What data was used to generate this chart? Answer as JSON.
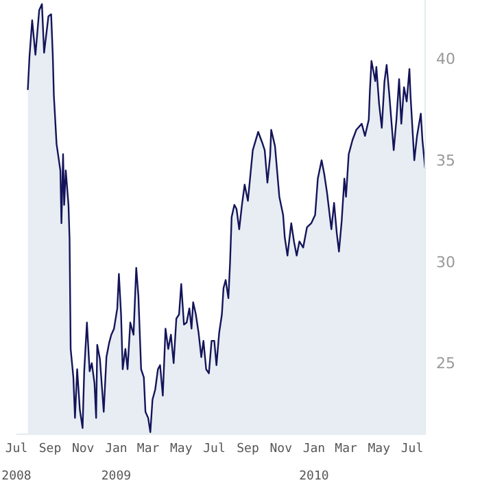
{
  "chart_data": {
    "type": "area",
    "x": [
      "2008-07-22",
      "2008-07-25",
      "2008-07-30",
      "2008-08-05",
      "2008-08-12",
      "2008-08-17",
      "2008-08-21",
      "2008-08-29",
      "2008-09-03",
      "2008-09-06",
      "2008-09-08",
      "2008-09-13",
      "2008-09-20",
      "2008-09-22",
      "2008-09-25",
      "2008-09-27",
      "2008-09-30",
      "2008-10-05",
      "2008-10-07",
      "2008-10-09",
      "2008-10-14",
      "2008-10-17",
      "2008-10-21",
      "2008-10-26",
      "2008-10-31",
      "2008-11-03",
      "2008-11-08",
      "2008-11-13",
      "2008-11-17",
      "2008-11-22",
      "2008-11-25",
      "2008-11-27",
      "2008-12-02",
      "2008-12-09",
      "2008-12-14",
      "2008-12-19",
      "2008-12-23",
      "2008-12-28",
      "2009-01-03",
      "2009-01-06",
      "2009-01-10",
      "2009-01-13",
      "2009-01-18",
      "2009-01-22",
      "2009-01-27",
      "2009-02-02",
      "2009-02-07",
      "2009-02-11",
      "2009-02-16",
      "2009-02-21",
      "2009-02-24",
      "2009-03-01",
      "2009-03-05",
      "2009-03-09",
      "2009-03-14",
      "2009-03-19",
      "2009-03-23",
      "2009-03-28",
      "2009-04-02",
      "2009-04-07",
      "2009-04-12",
      "2009-04-17",
      "2009-04-22",
      "2009-04-27",
      "2009-05-01",
      "2009-05-06",
      "2009-05-11",
      "2009-05-16",
      "2009-05-20",
      "2009-05-23",
      "2009-05-28",
      "2009-06-02",
      "2009-06-07",
      "2009-06-11",
      "2009-06-16",
      "2009-06-21",
      "2009-06-26",
      "2009-07-01",
      "2009-07-05",
      "2009-07-10",
      "2009-07-15",
      "2009-07-18",
      "2009-07-22",
      "2009-07-27",
      "2009-07-30",
      "2009-08-02",
      "2009-08-07",
      "2009-08-11",
      "2009-08-16",
      "2009-08-21",
      "2009-08-26",
      "2009-09-01",
      "2009-09-10",
      "2009-09-20",
      "2009-09-27",
      "2009-10-02",
      "2009-10-07",
      "2009-10-12",
      "2009-10-14",
      "2009-10-21",
      "2009-10-29",
      "2009-11-05",
      "2009-11-08",
      "2009-11-13",
      "2009-11-20",
      "2009-11-25",
      "2009-11-30",
      "2009-12-05",
      "2009-12-12",
      "2009-12-19",
      "2009-12-27",
      "2010-01-03",
      "2010-01-08",
      "2010-01-15",
      "2010-01-20",
      "2010-01-25",
      "2010-02-02",
      "2010-02-07",
      "2010-02-12",
      "2010-02-16",
      "2010-02-21",
      "2010-02-26",
      "2010-03-01",
      "2010-03-06",
      "2010-03-13",
      "2010-03-20",
      "2010-03-30",
      "2010-04-05",
      "2010-04-12",
      "2010-04-14",
      "2010-04-17",
      "2010-04-24",
      "2010-04-26",
      "2010-05-01",
      "2010-05-06",
      "2010-05-11",
      "2010-05-15",
      "2010-05-20",
      "2010-05-28",
      "2010-06-02",
      "2010-06-07",
      "2010-06-11",
      "2010-06-16",
      "2010-06-21",
      "2010-06-26",
      "2010-06-28",
      "2010-07-05",
      "2010-07-10",
      "2010-07-17",
      "2010-07-20",
      "2010-07-25"
    ],
    "series": [
      {
        "color": "#14145a",
        "values": [
          38.5,
          40.1,
          41.9,
          40.2,
          42.4,
          42.7,
          40.3,
          42.1,
          42.2,
          40.2,
          38.2,
          35.8,
          34.5,
          31.9,
          35.3,
          32.8,
          34.5,
          32.8,
          31.1,
          25.7,
          24.3,
          22.3,
          24.7,
          22.7,
          21.8,
          24.6,
          27.0,
          24.6,
          25.0,
          24.0,
          22.3,
          25.9,
          25.2,
          22.6,
          25.3,
          26.0,
          26.4,
          26.7,
          27.7,
          29.4,
          27.4,
          24.7,
          25.7,
          24.7,
          27.0,
          26.4,
          29.7,
          28.3,
          24.7,
          24.3,
          22.6,
          22.3,
          21.6,
          23.2,
          23.7,
          24.7,
          24.9,
          23.4,
          26.7,
          25.7,
          26.4,
          25.0,
          27.2,
          27.4,
          28.9,
          26.9,
          27.0,
          27.7,
          26.7,
          28.0,
          27.4,
          26.5,
          25.3,
          26.1,
          24.7,
          24.5,
          26.1,
          26.1,
          24.9,
          26.5,
          27.4,
          28.7,
          29.1,
          28.2,
          29.9,
          32.2,
          32.8,
          32.6,
          31.6,
          32.8,
          33.8,
          33.0,
          35.5,
          36.4,
          35.9,
          35.5,
          33.9,
          35.2,
          36.5,
          35.7,
          33.2,
          32.3,
          31.2,
          30.3,
          31.9,
          31.0,
          30.3,
          31.0,
          30.7,
          31.7,
          31.9,
          32.3,
          34.1,
          35.0,
          34.3,
          33.4,
          31.6,
          32.9,
          31.4,
          30.5,
          32.0,
          34.1,
          33.2,
          35.3,
          36.0,
          36.5,
          36.8,
          36.2,
          37.0,
          38.4,
          39.9,
          38.9,
          39.6,
          37.8,
          36.6,
          38.9,
          39.7,
          38.2,
          35.5,
          37.0,
          39.0,
          36.8,
          38.6,
          37.9,
          39.5,
          38.2,
          35.0,
          36.2,
          37.3,
          36.0,
          34.6
        ]
      }
    ],
    "xlim": [
      "2008-07-01",
      "2010-07-25"
    ],
    "xticks": [
      {
        "value": "2008-07-01",
        "label": "Jul\n2008"
      },
      {
        "value": "2008-09-01",
        "label": "Sep"
      },
      {
        "value": "2008-11-01",
        "label": "Nov"
      },
      {
        "value": "2009-01-01",
        "label": "Jan\n2009"
      },
      {
        "value": "2009-03-01",
        "label": "Mar"
      },
      {
        "value": "2009-05-01",
        "label": "May"
      },
      {
        "value": "2009-07-01",
        "label": "Jul"
      },
      {
        "value": "2009-09-01",
        "label": "Sep"
      },
      {
        "value": "2009-11-01",
        "label": "Nov"
      },
      {
        "value": "2010-01-01",
        "label": "Jan\n2010"
      },
      {
        "value": "2010-03-01",
        "label": "Mar"
      },
      {
        "value": "2010-05-01",
        "label": "May"
      },
      {
        "value": "2010-07-01",
        "label": "Jul"
      }
    ],
    "ylim": [
      21.5,
      42.9
    ],
    "yticks": [
      25,
      30,
      35,
      40
    ],
    "grid": false
  }
}
